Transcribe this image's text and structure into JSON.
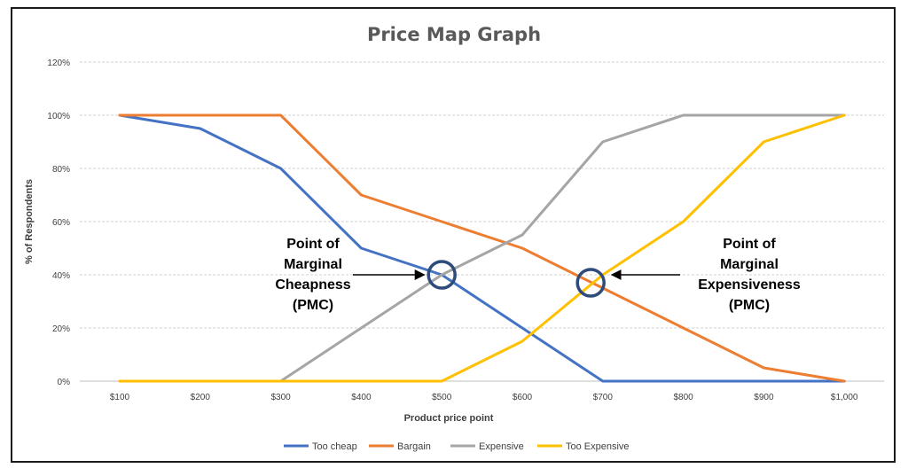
{
  "chart_data": {
    "type": "line",
    "title": "Price Map Graph",
    "xlabel": "Product price point",
    "ylabel": "% of Respondents",
    "categories": [
      "$100",
      "$200",
      "$300",
      "$400",
      "$500",
      "$600",
      "$700",
      "$800",
      "$900",
      "$1,000"
    ],
    "y_ticks": [
      "0%",
      "20%",
      "40%",
      "60%",
      "80%",
      "100%",
      "120%"
    ],
    "ylim": [
      0,
      120
    ],
    "grid": true,
    "legend_position": "bottom",
    "series": [
      {
        "name": "Too cheap",
        "color": "#4472C4",
        "values": [
          100,
          95,
          80,
          50,
          40,
          20,
          0,
          0,
          0,
          0
        ]
      },
      {
        "name": "Bargain",
        "color": "#ED7D31",
        "values": [
          100,
          100,
          100,
          70,
          60,
          50,
          35,
          20,
          5,
          0
        ]
      },
      {
        "name": "Expensive",
        "color": "#A5A5A5",
        "values": [
          0,
          0,
          0,
          20,
          40,
          55,
          90,
          100,
          100,
          100
        ]
      },
      {
        "name": "Too Expensive",
        "color": "#FFC000",
        "values": [
          0,
          0,
          0,
          0,
          0,
          15,
          40,
          60,
          90,
          100
        ]
      }
    ],
    "annotations": [
      {
        "lines": [
          "Point of",
          "Marginal",
          "Cheapness",
          "(PMC)"
        ],
        "at_category": "$500",
        "at_value": 40
      },
      {
        "lines": [
          "Point of",
          "Marginal",
          "Expensiveness",
          "(PMC)"
        ],
        "at_category": 6.85,
        "at_value": 37
      }
    ],
    "marker_color": "#2F4B7C"
  }
}
